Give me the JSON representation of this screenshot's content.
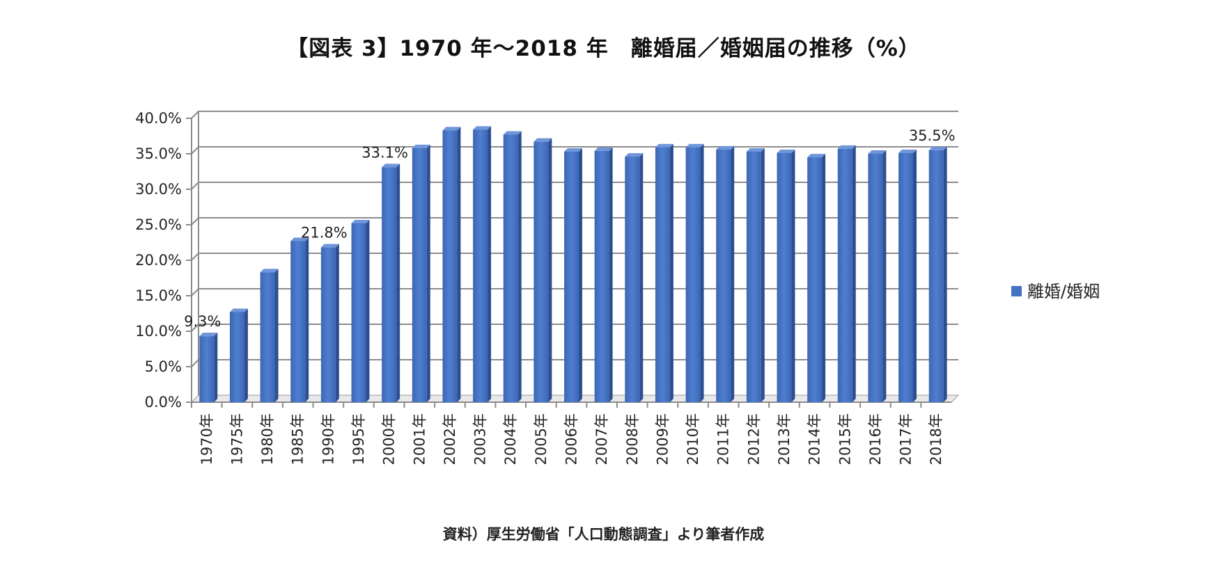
{
  "chart_data": {
    "type": "bar",
    "title": "【図表 3】1970 年～2018 年　離婚届／婚姻届の推移（%）",
    "source": "資料）厚生労働省「人口動態調査」より筆者作成",
    "categories": [
      "1970年",
      "1975年",
      "1980年",
      "1985年",
      "1990年",
      "1995年",
      "2000年",
      "2001年",
      "2002年",
      "2003年",
      "2004年",
      "2005年",
      "2006年",
      "2007年",
      "2008年",
      "2009年",
      "2010年",
      "2011年",
      "2012年",
      "2013年",
      "2014年",
      "2015年",
      "2016年",
      "2017年",
      "2018年"
    ],
    "series": [
      {
        "name": "離婚/婚姻",
        "values": [
          9.3,
          12.7,
          18.3,
          22.7,
          21.8,
          25.2,
          33.1,
          35.8,
          38.3,
          38.4,
          37.7,
          36.7,
          35.3,
          35.4,
          34.6,
          35.9,
          35.9,
          35.6,
          35.3,
          35.1,
          34.5,
          35.7,
          35.0,
          35.1,
          35.5
        ],
        "color": "#4472C4",
        "labeled_points": [
          {
            "category": "1970年",
            "label": "9.3%"
          },
          {
            "category": "1990年",
            "label": "21.8%"
          },
          {
            "category": "2000年",
            "label": "33.1%"
          },
          {
            "category": "2018年",
            "label": "35.5%"
          }
        ]
      }
    ],
    "y_ticks": [
      "0.0%",
      "5.0%",
      "10.0%",
      "15.0%",
      "20.0%",
      "25.0%",
      "30.0%",
      "35.0%",
      "40.0%"
    ],
    "ylim": [
      0,
      40
    ],
    "y_step": 5,
    "grid": true,
    "legend_position": "right",
    "style_3d": true
  }
}
